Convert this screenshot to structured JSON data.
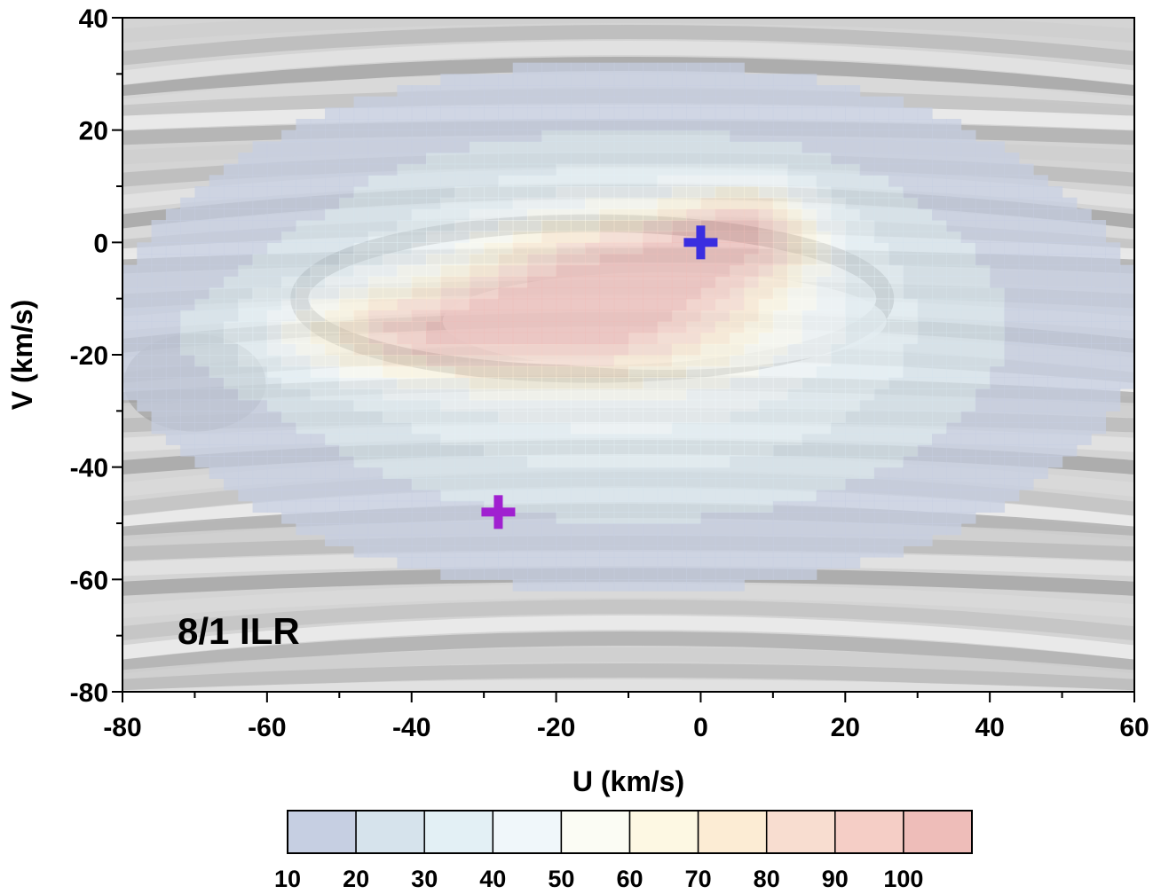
{
  "chart_data": {
    "type": "heatmap",
    "title": "",
    "xlabel": "U (km/s)",
    "ylabel": "V (km/s)",
    "xlim": [
      -80,
      60
    ],
    "ylim": [
      -80,
      40
    ],
    "x_ticks": [
      -80,
      -60,
      -40,
      -20,
      0,
      20,
      40,
      60
    ],
    "y_ticks": [
      -80,
      -60,
      -40,
      -20,
      0,
      20,
      40
    ],
    "x_tick_labels": [
      "-80",
      "-60",
      "-40",
      "-20",
      "0",
      "20",
      "40",
      "60"
    ],
    "y_tick_labels": [
      "-80",
      "-60",
      "-40",
      "-20",
      "0",
      "20",
      "40"
    ],
    "annotation": "8/1 ILR",
    "markers": [
      {
        "u": 0,
        "v": 0,
        "color": "#3a2ee0",
        "shape": "cross"
      },
      {
        "u": -28,
        "v": -48,
        "color": "#a020d0",
        "shape": "cross"
      }
    ],
    "density_peaks": [
      {
        "u": -38,
        "v": -16,
        "su": 16,
        "sv": 6,
        "amp": 55
      },
      {
        "u": -12,
        "v": -8,
        "su": 14,
        "sv": 9,
        "amp": 60
      },
      {
        "u": 3,
        "v": 0,
        "su": 8,
        "sv": 6,
        "amp": 35
      },
      {
        "u": 8,
        "v": 4,
        "su": 6,
        "sv": 5,
        "amp": 30
      }
    ],
    "colorbar": {
      "levels": [
        10,
        20,
        30,
        40,
        50,
        60,
        70,
        80,
        90,
        100
      ],
      "labels": [
        "10",
        "20",
        "30",
        "40",
        "50",
        "60",
        "70",
        "80",
        "90",
        "100"
      ],
      "colors": [
        "#c6cfe2",
        "#d6e3ec",
        "#e3f0f5",
        "#f0f7fa",
        "#fbfcf4",
        "#fdf8e3",
        "#fcecd4",
        "#f8ddd0",
        "#f5cec6",
        "#eebdb9"
      ]
    }
  }
}
